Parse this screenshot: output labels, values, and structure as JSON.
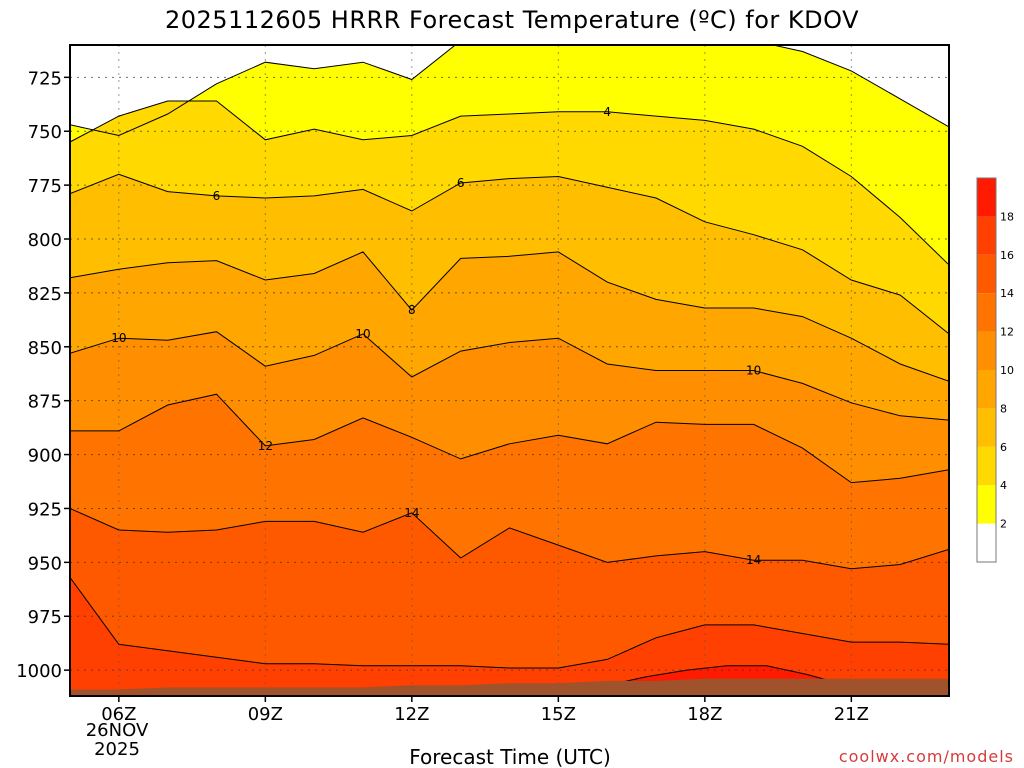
{
  "chart_data": {
    "type": "contour",
    "title": "2025112605 HRRR Forecast Temperature (ºC) for KDOV",
    "xlabel": "Forecast Time (UTC)",
    "ylabel": "",
    "x_hours": [
      5,
      6,
      7,
      8,
      9,
      10,
      11,
      12,
      13,
      14,
      15,
      16,
      17,
      18,
      19,
      20,
      21,
      22,
      23
    ],
    "xlim": [
      5,
      23
    ],
    "ylim": [
      1012,
      710
    ],
    "x_ticks": [
      {
        "hour": 6,
        "label": "06Z"
      },
      {
        "hour": 9,
        "label": "09Z"
      },
      {
        "hour": 12,
        "label": "12Z"
      },
      {
        "hour": 15,
        "label": "15Z"
      },
      {
        "hour": 18,
        "label": "18Z"
      },
      {
        "hour": 21,
        "label": "21Z"
      }
    ],
    "date_label": [
      "26NOV",
      "2025"
    ],
    "y_ticks": [
      725,
      750,
      775,
      800,
      825,
      850,
      875,
      900,
      925,
      950,
      975,
      1000
    ],
    "levels": [
      2,
      4,
      6,
      8,
      10,
      12,
      14,
      16,
      18
    ],
    "colors": {
      "below_2": "#ffffff",
      "2": "#ffff00",
      "4": "#ffd900",
      "6": "#ffbf00",
      "8": "#ffa600",
      "10": "#ff8f00",
      "12": "#ff7300",
      "14": "#ff5900",
      "16": "#ff4000",
      "18": "#ff1a00",
      "ground": "#a0522d"
    },
    "contours": [
      {
        "value": 2,
        "top": [
          747,
          752,
          742,
          728,
          718,
          721,
          718,
          726,
          708,
          704,
          707,
          704,
          704,
          709,
          708,
          713,
          722,
          735,
          748
        ]
      },
      {
        "value": 4,
        "top": [
          755,
          743,
          736,
          736,
          754,
          749,
          754,
          752,
          743,
          742,
          741,
          741,
          743,
          745,
          749,
          757,
          771,
          790,
          812
        ]
      },
      {
        "value": 6,
        "top": [
          779,
          770,
          778,
          780,
          781,
          780,
          777,
          787,
          774,
          772,
          771,
          776,
          781,
          792,
          798,
          805,
          819,
          826,
          844
        ]
      },
      {
        "value": 8,
        "top": [
          818,
          814,
          811,
          810,
          819,
          816,
          806,
          833,
          809,
          808,
          806,
          820,
          828,
          832,
          832,
          836,
          846,
          858,
          866
        ]
      },
      {
        "value": 10,
        "top": [
          853,
          846,
          847,
          843,
          859,
          854,
          844,
          864,
          852,
          848,
          846,
          858,
          861,
          861,
          861,
          867,
          876,
          882,
          884
        ]
      },
      {
        "value": 12,
        "top": [
          889,
          889,
          877,
          872,
          896,
          893,
          883,
          892,
          902,
          895,
          891,
          895,
          885,
          886,
          886,
          897,
          913,
          911,
          907
        ]
      },
      {
        "value": 14,
        "top": [
          925,
          935,
          936,
          935,
          931,
          931,
          936,
          927,
          948,
          934,
          942,
          950,
          947,
          945,
          949,
          949,
          953,
          951,
          944
        ]
      },
      {
        "value": 16,
        "top": [
          957,
          988,
          991,
          994,
          997,
          997,
          998,
          998,
          998,
          999,
          999,
          995,
          985,
          979,
          979,
          983,
          987,
          987,
          988
        ]
      }
    ],
    "warm_core_18": {
      "hour_start": 16.0,
      "hour_end": 20.9,
      "top": [
        1007,
        1003,
        1000,
        998,
        998,
        1002,
        1007
      ]
    },
    "surface_pressure": [
      1009,
      1009,
      1008,
      1008,
      1008,
      1008,
      1008,
      1007,
      1007,
      1006,
      1006,
      1005,
      1005,
      1004,
      1004,
      1004,
      1004,
      1004,
      1004
    ],
    "colorbar_labels": [
      2,
      4,
      6,
      8,
      10,
      12,
      14,
      16,
      18
    ],
    "credit": "coolwx.com/models"
  }
}
